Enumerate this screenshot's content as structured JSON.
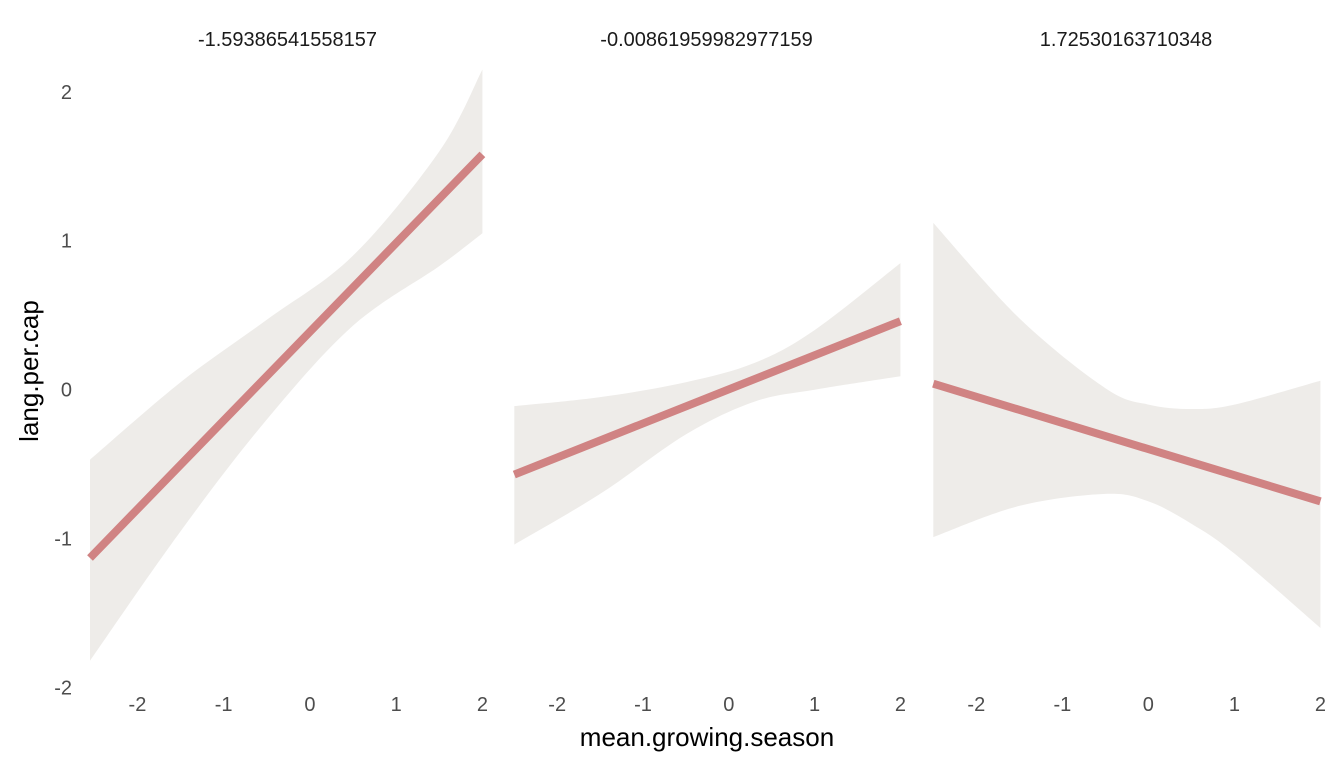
{
  "chart_data": {
    "type": "line",
    "xlabel": "mean.growing.season",
    "ylabel": "lang.per.cap",
    "xlim": [
      -2.55,
      2.03
    ],
    "ylim": [
      -2.05,
      2.18
    ],
    "y_ticks": [
      "2",
      "1",
      "0",
      "-1",
      "-2"
    ],
    "x_ticks": [
      "-2",
      "-1",
      "0",
      "1",
      "2"
    ],
    "grid": false,
    "colors": {
      "fit_line": "#d08383",
      "ribbon": "#eeece9"
    },
    "panels": [
      {
        "strip": "-1.59386541558157",
        "x_range": [
          -2.55,
          2.0
        ],
        "line": {
          "x": [
            -2.55,
            2.0
          ],
          "y": [
            -1.13,
            1.58
          ]
        },
        "ribbon": {
          "x": [
            -2.55,
            -1.5,
            -0.5,
            0.5,
            1.5,
            2.0
          ],
          "upper": [
            -0.47,
            0.05,
            0.47,
            0.9,
            1.6,
            2.15
          ],
          "lower": [
            -1.82,
            -0.95,
            -0.2,
            0.43,
            0.83,
            1.05
          ]
        }
      },
      {
        "strip": "-0.00861959982977159",
        "x_range": [
          -2.5,
          2.0
        ],
        "line": {
          "x": [
            -2.5,
            2.0
          ],
          "y": [
            -0.57,
            0.46
          ]
        },
        "ribbon": {
          "x": [
            -2.5,
            -1.5,
            -0.5,
            0.3,
            1.0,
            2.0
          ],
          "upper": [
            -0.11,
            -0.05,
            0.05,
            0.18,
            0.4,
            0.85
          ],
          "lower": [
            -1.04,
            -0.7,
            -0.3,
            -0.08,
            0.0,
            0.09
          ]
        }
      },
      {
        "strip": "1.72530163710348",
        "x_range": [
          -2.5,
          2.0
        ],
        "line": {
          "x": [
            -2.5,
            2.0
          ],
          "y": [
            0.04,
            -0.75
          ]
        },
        "ribbon": {
          "x": [
            -2.5,
            -1.5,
            -0.5,
            0.0,
            0.5,
            1.0,
            2.0
          ],
          "upper": [
            1.12,
            0.48,
            0.01,
            -0.1,
            -0.13,
            -0.1,
            0.06
          ],
          "lower": [
            -0.99,
            -0.78,
            -0.7,
            -0.75,
            -0.9,
            -1.1,
            -1.6
          ]
        }
      }
    ]
  }
}
